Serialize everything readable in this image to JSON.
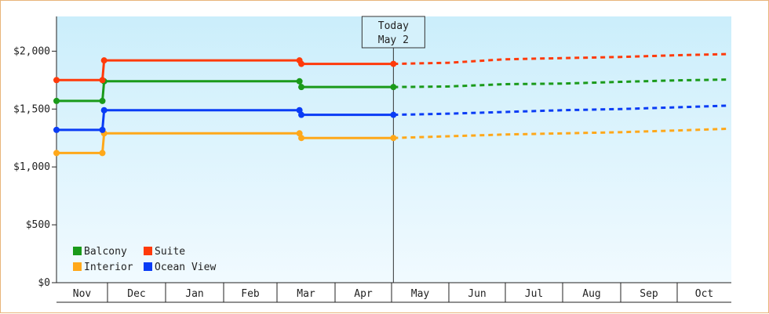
{
  "chart_data": {
    "type": "line",
    "title": "",
    "xlabel": "",
    "ylabel": "",
    "x_ticks": [
      "Nov",
      "Dec",
      "Jan",
      "Feb",
      "Mar",
      "Apr",
      "May",
      "Jun",
      "Jul",
      "Aug",
      "Sep",
      "Oct"
    ],
    "y_ticks": [
      "$0",
      "$500",
      "$1,000",
      "$1,500",
      "$2,000"
    ],
    "ylim": [
      0,
      2300
    ],
    "grid": false,
    "legend_position": "bottom-left",
    "today_marker": {
      "line1": "Today",
      "line2": "May 2",
      "date": "May 2"
    },
    "colors": {
      "background_top": "#cbeefb",
      "background_bottom": "#f1faff",
      "frame_border": "#e8b57a"
    },
    "series": [
      {
        "name": "Balcony",
        "color": "#1a9a1a",
        "points": [
          [
            "Nov 1",
            1570
          ],
          [
            "Nov 28",
            1570
          ],
          [
            "Nov 29",
            1740
          ],
          [
            "Mar 13",
            1740
          ],
          [
            "Mar 14",
            1690
          ],
          [
            "May 2",
            1690
          ]
        ],
        "forecast": [
          [
            "May 2",
            1690
          ],
          [
            "Jun 1",
            1695
          ],
          [
            "Jul 1",
            1715
          ],
          [
            "Aug 1",
            1720
          ],
          [
            "Sep 1",
            1735
          ],
          [
            "Oct 1",
            1748
          ],
          [
            "Oct 31",
            1755
          ]
        ]
      },
      {
        "name": "Suite",
        "color": "#ff3a0a",
        "points": [
          [
            "Nov 1",
            1750
          ],
          [
            "Nov 28",
            1750
          ],
          [
            "Nov 29",
            1920
          ],
          [
            "Mar 13",
            1920
          ],
          [
            "Mar 14",
            1890
          ],
          [
            "May 2",
            1890
          ]
        ],
        "forecast": [
          [
            "May 2",
            1890
          ],
          [
            "Jun 1",
            1900
          ],
          [
            "Jul 1",
            1930
          ],
          [
            "Aug 1",
            1940
          ],
          [
            "Sep 1",
            1950
          ],
          [
            "Oct 1",
            1965
          ],
          [
            "Oct 31",
            1975
          ]
        ]
      },
      {
        "name": "Interior",
        "color": "#ffa81a",
        "points": [
          [
            "Nov 1",
            1120
          ],
          [
            "Nov 28",
            1120
          ],
          [
            "Nov 29",
            1290
          ],
          [
            "Mar 13",
            1290
          ],
          [
            "Mar 14",
            1250
          ],
          [
            "May 2",
            1250
          ]
        ],
        "forecast": [
          [
            "May 2",
            1250
          ],
          [
            "Jun 1",
            1265
          ],
          [
            "Jul 1",
            1280
          ],
          [
            "Aug 1",
            1290
          ],
          [
            "Sep 1",
            1300
          ],
          [
            "Oct 1",
            1315
          ],
          [
            "Oct 31",
            1330
          ]
        ]
      },
      {
        "name": "Ocean View",
        "color": "#0a3cf5",
        "points": [
          [
            "Nov 1",
            1320
          ],
          [
            "Nov 28",
            1320
          ],
          [
            "Nov 29",
            1490
          ],
          [
            "Mar 13",
            1490
          ],
          [
            "Mar 14",
            1450
          ],
          [
            "May 2",
            1450
          ]
        ],
        "forecast": [
          [
            "May 2",
            1450
          ],
          [
            "Jun 1",
            1460
          ],
          [
            "Jul 1",
            1475
          ],
          [
            "Aug 1",
            1490
          ],
          [
            "Sep 1",
            1500
          ],
          [
            "Oct 1",
            1515
          ],
          [
            "Oct 31",
            1530
          ]
        ]
      }
    ]
  }
}
